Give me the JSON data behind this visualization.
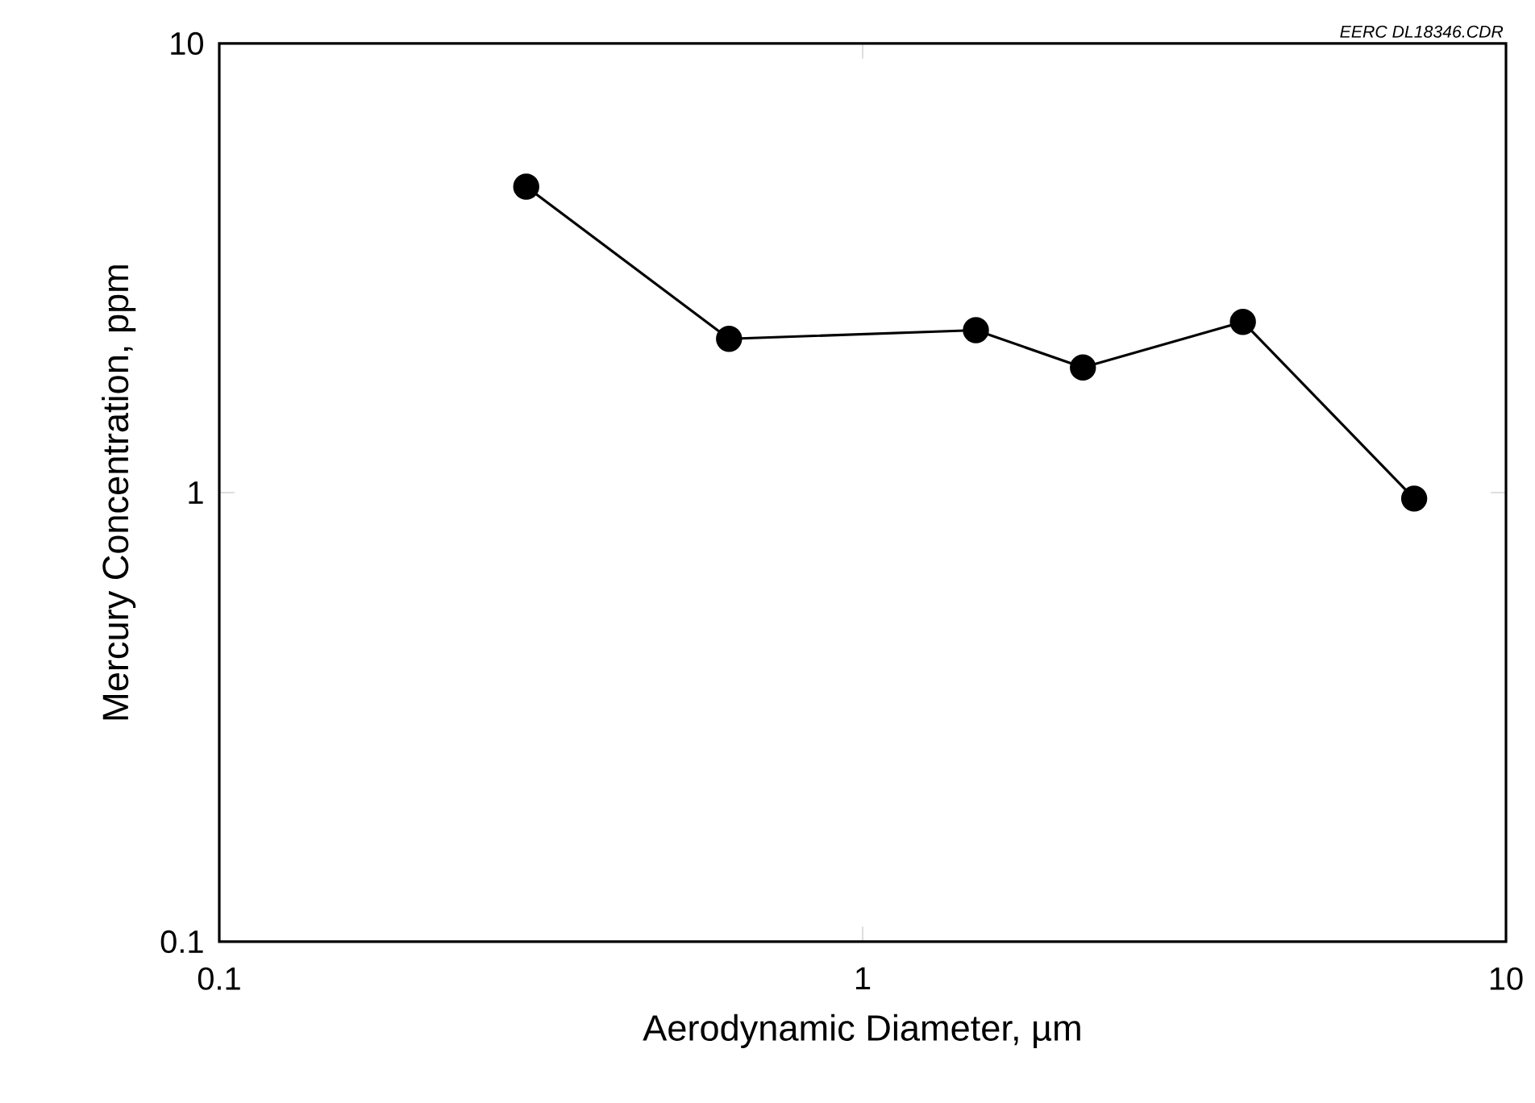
{
  "chart_data": {
    "type": "line",
    "xlabel": "Aerodynamic Diameter, µm",
    "ylabel": "Mercury Concentration, ppm",
    "annotations": [
      "EERC DL18346.CDR"
    ],
    "x": [
      0.3,
      0.62,
      1.5,
      2.2,
      3.9,
      7.2
    ],
    "series": [
      {
        "color": "#000000",
        "values": [
          4.8,
          2.2,
          2.3,
          1.9,
          2.4,
          0.97
        ]
      }
    ],
    "log": "xy",
    "xlim": [
      0.1,
      10
    ],
    "ylim": [
      0.1,
      10
    ],
    "xticks": [
      0.1,
      1,
      10
    ],
    "yticks": [
      0.1,
      1,
      10
    ],
    "marker": "circle",
    "line_style": "solid",
    "grid": false
  }
}
